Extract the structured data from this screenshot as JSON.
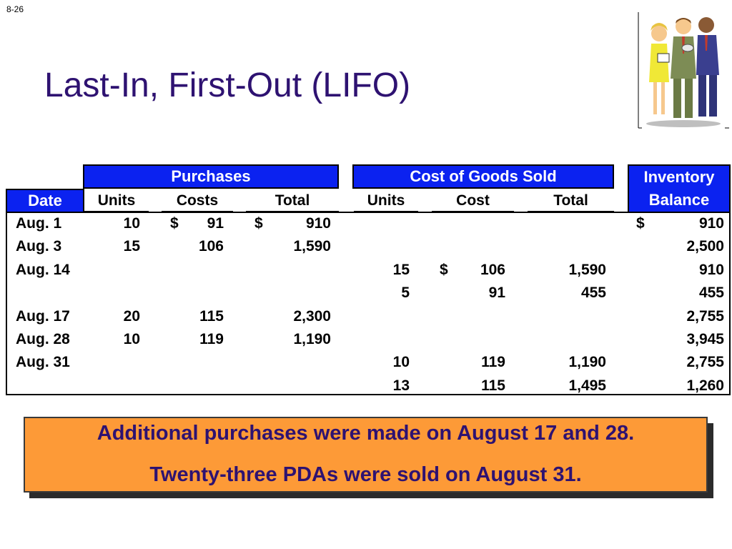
{
  "slide_number": "8-26",
  "title": "Last-In, First-Out (LIFO)",
  "table": {
    "group_headers": {
      "purchases": "Purchases",
      "cogs": "Cost of Goods Sold",
      "inventory_line1": "Inventory",
      "inventory_line2": "Balance"
    },
    "columns": {
      "date": "Date",
      "p_units": "Units",
      "p_costs": "Costs",
      "p_total": "Total",
      "c_units": "Units",
      "c_cost": "Cost",
      "c_total": "Total"
    },
    "rows": [
      {
        "date": "Aug. 1",
        "p_units": "10",
        "p_costs": "91",
        "p_costs_dollar": "$",
        "p_total": "910",
        "p_total_dollar": "$",
        "c_units": "",
        "c_cost": "",
        "c_cost_dollar": "",
        "c_total": "",
        "balance": "910",
        "balance_dollar": "$"
      },
      {
        "date": "Aug. 3",
        "p_units": "15",
        "p_costs": "106",
        "p_costs_dollar": "",
        "p_total": "1,590",
        "p_total_dollar": "",
        "c_units": "",
        "c_cost": "",
        "c_cost_dollar": "",
        "c_total": "",
        "balance": "2,500",
        "balance_dollar": ""
      },
      {
        "date": "Aug. 14",
        "p_units": "",
        "p_costs": "",
        "p_costs_dollar": "",
        "p_total": "",
        "p_total_dollar": "",
        "c_units": "15",
        "c_cost": "106",
        "c_cost_dollar": "$",
        "c_total": "1,590",
        "balance": "910",
        "balance_dollar": ""
      },
      {
        "date": "",
        "p_units": "",
        "p_costs": "",
        "p_costs_dollar": "",
        "p_total": "",
        "p_total_dollar": "",
        "c_units": "5",
        "c_cost": "91",
        "c_cost_dollar": "",
        "c_total": "455",
        "balance": "455",
        "balance_dollar": ""
      },
      {
        "date": "Aug. 17",
        "p_units": "20",
        "p_costs": "115",
        "p_costs_dollar": "",
        "p_total": "2,300",
        "p_total_dollar": "",
        "c_units": "",
        "c_cost": "",
        "c_cost_dollar": "",
        "c_total": "",
        "balance": "2,755",
        "balance_dollar": ""
      },
      {
        "date": "Aug. 28",
        "p_units": "10",
        "p_costs": "119",
        "p_costs_dollar": "",
        "p_total": "1,190",
        "p_total_dollar": "",
        "c_units": "",
        "c_cost": "",
        "c_cost_dollar": "",
        "c_total": "",
        "balance": "3,945",
        "balance_dollar": ""
      },
      {
        "date": "Aug. 31",
        "p_units": "",
        "p_costs": "",
        "p_costs_dollar": "",
        "p_total": "",
        "p_total_dollar": "",
        "c_units": "10",
        "c_cost": "119",
        "c_cost_dollar": "",
        "c_total": "1,190",
        "balance": "2,755",
        "balance_dollar": ""
      },
      {
        "date": "",
        "p_units": "",
        "p_costs": "",
        "p_costs_dollar": "",
        "p_total": "",
        "p_total_dollar": "",
        "c_units": "13",
        "c_cost": "115",
        "c_cost_dollar": "",
        "c_total": "1,495",
        "balance": "1,260",
        "balance_dollar": ""
      }
    ]
  },
  "note": {
    "line1": "Additional purchases were made on August 17 and 28.",
    "line2": "Twenty-three PDAs were sold on August 31."
  },
  "colors": {
    "title": "#2e1271",
    "header_fill": "#0b22f0",
    "note_fill": "#fd9a37"
  },
  "clipart": "business-people-clipart"
}
